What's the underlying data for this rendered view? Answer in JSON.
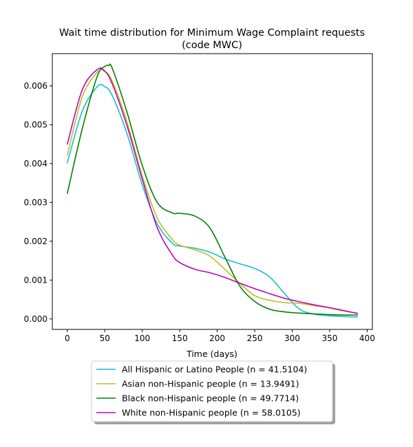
{
  "chart_data": {
    "type": "line",
    "title_line1": "Wait time distribution  for Minimum Wage Complaint  requests",
    "title_line2": "(code MWC)",
    "xlabel": "Time (days)",
    "ylabel": "",
    "xlim": [
      -20,
      407
    ],
    "ylim": [
      -0.00027,
      0.00683
    ],
    "xticks": [
      0,
      50,
      100,
      150,
      200,
      250,
      300,
      350,
      400
    ],
    "xtick_labels": [
      "0",
      "50",
      "100",
      "150",
      "200",
      "250",
      "300",
      "350",
      "400"
    ],
    "yticks": [
      0,
      0.001,
      0.002,
      0.003,
      0.004,
      0.005,
      0.006
    ],
    "ytick_labels": [
      "0.000",
      "0.001",
      "0.002",
      "0.003",
      "0.004",
      "0.005",
      "0.006"
    ],
    "legend_position": "bottom-center-outside",
    "series": [
      {
        "name": "All Hispanic or Latino People (n = 41.5104)",
        "color": "#17becf",
        "x": [
          0,
          20,
          40,
          50,
          60,
          80,
          100,
          120,
          140,
          150,
          170,
          190,
          210,
          230,
          250,
          270,
          290,
          310,
          330,
          350,
          370,
          387
        ],
        "y": [
          0.00402,
          0.00535,
          0.00598,
          0.00598,
          0.00575,
          0.00475,
          0.00345,
          0.00245,
          0.00195,
          0.00188,
          0.00182,
          0.00172,
          0.00155,
          0.00142,
          0.0013,
          0.00108,
          0.00065,
          0.00025,
          0.00012,
          8e-05,
          6e-05,
          5e-05
        ]
      },
      {
        "name": "Asian non-Hispanic people (n = 13.9491)",
        "color": "#bcbd22",
        "x": [
          0,
          20,
          40,
          50,
          60,
          80,
          100,
          120,
          140,
          150,
          170,
          190,
          210,
          230,
          250,
          270,
          290,
          310,
          330,
          350,
          370,
          387
        ],
        "y": [
          0.00422,
          0.00572,
          0.00635,
          0.00637,
          0.00612,
          0.00505,
          0.00368,
          0.0026,
          0.00205,
          0.0019,
          0.00178,
          0.00162,
          0.00128,
          0.00092,
          0.0006,
          0.00048,
          0.00042,
          0.0004,
          0.00034,
          0.00028,
          0.0002,
          0.00015
        ]
      },
      {
        "name": "Black non-Hispanic people (n = 49.7714)",
        "color": "#008000",
        "x": [
          0,
          20,
          40,
          50,
          55,
          60,
          80,
          100,
          120,
          140,
          150,
          170,
          190,
          210,
          230,
          250,
          270,
          290,
          310,
          330,
          350,
          370,
          387
        ],
        "y": [
          0.00323,
          0.0049,
          0.00625,
          0.0065,
          0.00652,
          0.00645,
          0.0053,
          0.00395,
          0.003,
          0.00273,
          0.00272,
          0.00265,
          0.00235,
          0.0016,
          0.00085,
          0.00045,
          0.00025,
          0.00018,
          0.00015,
          0.00013,
          0.00011,
          0.0001,
          0.0001
        ]
      },
      {
        "name": "White non-Hispanic people (n = 58.0105)",
        "color": "#bf00bf",
        "x": [
          0,
          20,
          40,
          50,
          60,
          80,
          100,
          120,
          140,
          150,
          170,
          190,
          210,
          230,
          250,
          270,
          290,
          310,
          330,
          350,
          370,
          387
        ],
        "y": [
          0.0045,
          0.0059,
          0.00642,
          0.00638,
          0.00605,
          0.00495,
          0.0036,
          0.00235,
          0.00165,
          0.00145,
          0.00128,
          0.00119,
          0.00107,
          0.00092,
          0.00078,
          0.00065,
          0.00053,
          0.00044,
          0.00036,
          0.00029,
          0.00021,
          0.00014
        ]
      }
    ]
  }
}
